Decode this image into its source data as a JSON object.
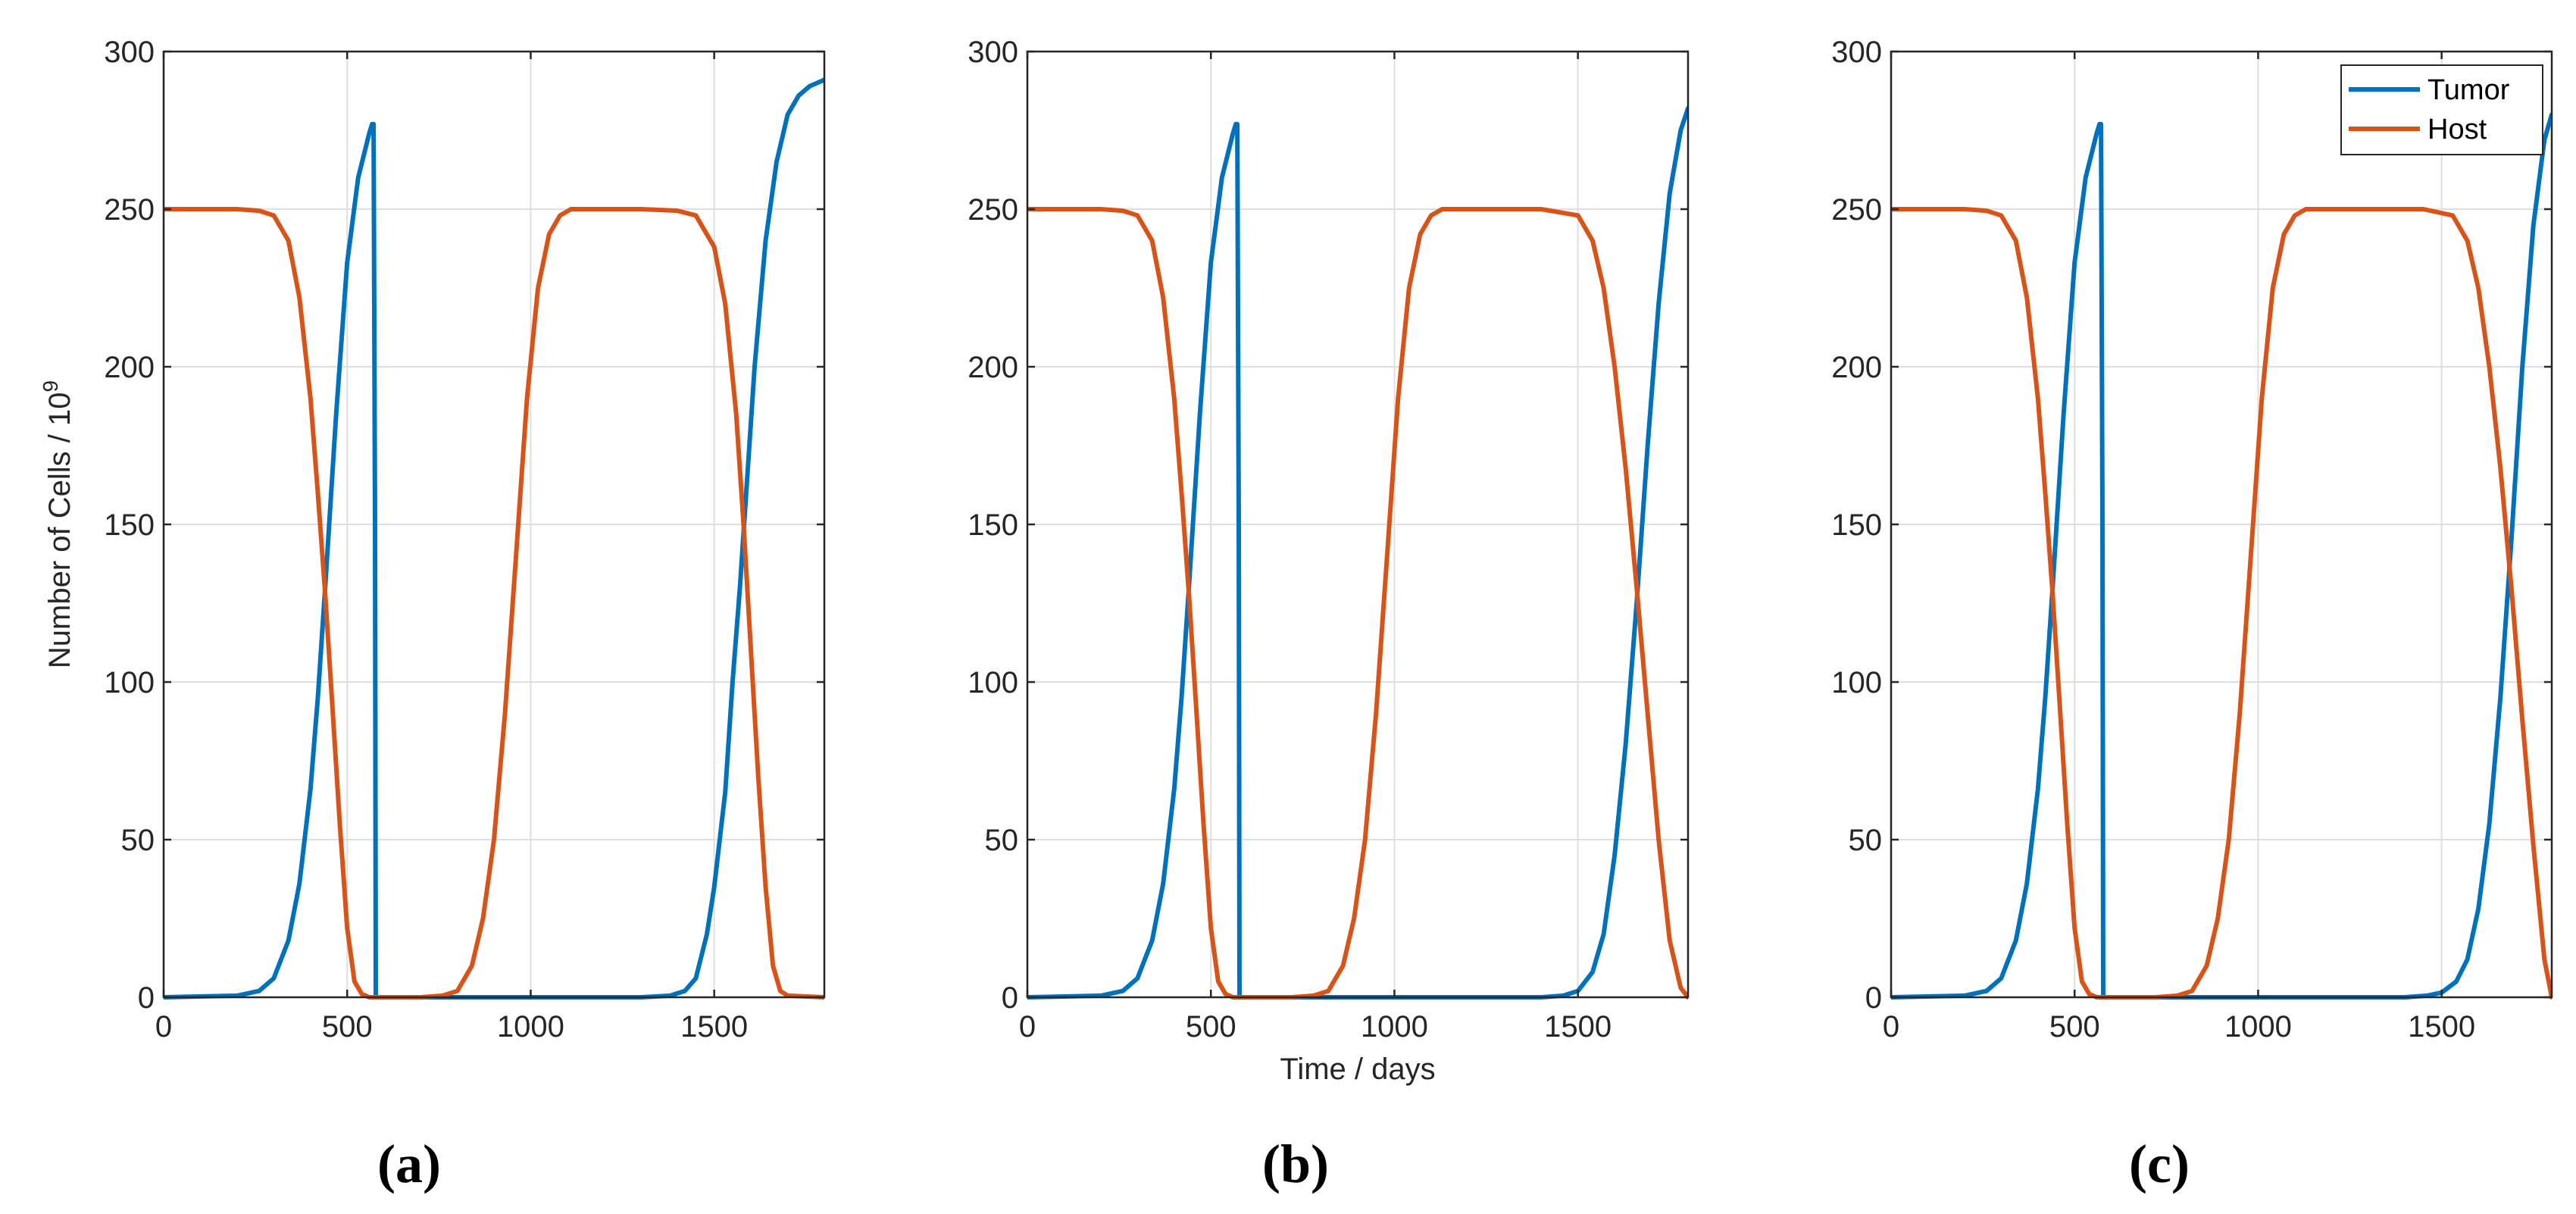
{
  "colors": {
    "tumor": "#0072BD",
    "host": "#D95319"
  },
  "chart_data": [
    {
      "type": "line",
      "panel": "(a)",
      "xlabel": "",
      "ylabel": "Number of Cells / 10",
      "ylabel_exponent": "9",
      "xlim": [
        0,
        1800
      ],
      "ylim": [
        0,
        300
      ],
      "xticks": [
        0,
        500,
        1000,
        1500
      ],
      "xtick_labels": [
        "0",
        "500",
        "1000",
        "1500"
      ],
      "yticks": [
        0,
        50,
        100,
        150,
        200,
        250,
        300
      ],
      "ytick_labels": [
        "0",
        "50",
        "100",
        "150",
        "200",
        "250",
        "300"
      ],
      "grid": true,
      "legend": null,
      "series": [
        {
          "name": "Tumor",
          "color": "#0072BD",
          "x": [
            0,
            200,
            260,
            300,
            340,
            370,
            400,
            420,
            440,
            470,
            500,
            530,
            560,
            568,
            572,
            576,
            578,
            590,
            700,
            1300,
            1380,
            1420,
            1450,
            1480,
            1500,
            1530,
            1550,
            1570,
            1590,
            1610,
            1640,
            1670,
            1700,
            1730,
            1760,
            1800
          ],
          "y": [
            0,
            0.5,
            2,
            6,
            18,
            36,
            66,
            95,
            130,
            185,
            233,
            260,
            274,
            277,
            277,
            150,
            0,
            0,
            0,
            0,
            0.5,
            2,
            6,
            20,
            35,
            65,
            100,
            130,
            165,
            200,
            240,
            265,
            280,
            286,
            289,
            291
          ]
        },
        {
          "name": "Host",
          "color": "#D95319",
          "x": [
            0,
            200,
            260,
            300,
            340,
            370,
            400,
            420,
            440,
            460,
            480,
            500,
            520,
            540,
            560,
            600,
            700,
            760,
            800,
            840,
            870,
            900,
            930,
            960,
            990,
            1020,
            1050,
            1080,
            1110,
            1150,
            1200,
            1300,
            1400,
            1450,
            1500,
            1530,
            1560,
            1580,
            1600,
            1620,
            1640,
            1660,
            1680,
            1700,
            1800
          ],
          "y": [
            250,
            250,
            249.5,
            248,
            240,
            222,
            190,
            160,
            128,
            92,
            55,
            22,
            5,
            1,
            0,
            0,
            0,
            0.5,
            2,
            10,
            25,
            50,
            90,
            140,
            190,
            225,
            242,
            248,
            250,
            250,
            250,
            250,
            249.5,
            248,
            238,
            220,
            185,
            150,
            110,
            70,
            35,
            10,
            2,
            0.5,
            0
          ]
        }
      ]
    },
    {
      "type": "line",
      "panel": "(b)",
      "xlabel": "Time / days",
      "ylabel": "",
      "xlim": [
        0,
        1800
      ],
      "ylim": [
        0,
        300
      ],
      "xticks": [
        0,
        500,
        1000,
        1500
      ],
      "xtick_labels": [
        "0",
        "500",
        "1000",
        "1500"
      ],
      "yticks": [
        0,
        50,
        100,
        150,
        200,
        250,
        300
      ],
      "ytick_labels": [
        "0",
        "50",
        "100",
        "150",
        "200",
        "250",
        "300"
      ],
      "grid": true,
      "legend": null,
      "series": [
        {
          "name": "Tumor",
          "color": "#0072BD",
          "x": [
            0,
            200,
            260,
            300,
            340,
            370,
            400,
            420,
            440,
            470,
            500,
            530,
            560,
            568,
            572,
            576,
            578,
            590,
            700,
            1400,
            1460,
            1500,
            1540,
            1570,
            1600,
            1630,
            1660,
            1690,
            1720,
            1750,
            1780,
            1800
          ],
          "y": [
            0,
            0.5,
            2,
            6,
            18,
            36,
            66,
            95,
            130,
            185,
            233,
            260,
            274,
            277,
            277,
            150,
            0,
            0,
            0,
            0,
            0.5,
            2,
            8,
            20,
            45,
            80,
            125,
            175,
            220,
            255,
            275,
            282
          ]
        },
        {
          "name": "Host",
          "color": "#D95319",
          "x": [
            0,
            200,
            260,
            300,
            340,
            370,
            400,
            420,
            440,
            460,
            480,
            500,
            520,
            540,
            560,
            600,
            720,
            780,
            820,
            860,
            890,
            920,
            950,
            980,
            1010,
            1040,
            1070,
            1100,
            1130,
            1170,
            1200,
            1400,
            1500,
            1540,
            1570,
            1600,
            1630,
            1660,
            1690,
            1720,
            1750,
            1780,
            1800
          ],
          "y": [
            250,
            250,
            249.5,
            248,
            240,
            222,
            190,
            160,
            128,
            92,
            55,
            22,
            5,
            1,
            0,
            0,
            0,
            0.5,
            2,
            10,
            25,
            50,
            90,
            140,
            190,
            225,
            242,
            248,
            250,
            250,
            250,
            250,
            248,
            240,
            225,
            200,
            168,
            130,
            90,
            50,
            18,
            3,
            0
          ]
        }
      ]
    },
    {
      "type": "line",
      "panel": "(c)",
      "xlabel": "",
      "ylabel": "",
      "xlim": [
        0,
        1800
      ],
      "ylim": [
        0,
        300
      ],
      "xticks": [
        0,
        500,
        1000,
        1500
      ],
      "xtick_labels": [
        "0",
        "500",
        "1000",
        "1500"
      ],
      "yticks": [
        0,
        50,
        100,
        150,
        200,
        250,
        300
      ],
      "ytick_labels": [
        "0",
        "50",
        "100",
        "150",
        "200",
        "250",
        "300"
      ],
      "grid": true,
      "legend": {
        "position": "top-right",
        "entries": [
          "Tumor",
          "Host"
        ]
      },
      "series": [
        {
          "name": "Tumor",
          "color": "#0072BD",
          "x": [
            0,
            200,
            260,
            300,
            340,
            370,
            400,
            420,
            440,
            470,
            500,
            530,
            560,
            568,
            572,
            576,
            578,
            590,
            700,
            1400,
            1460,
            1500,
            1540,
            1570,
            1600,
            1630,
            1660,
            1690,
            1720,
            1750,
            1780,
            1800
          ],
          "y": [
            0,
            0.5,
            2,
            6,
            18,
            36,
            66,
            95,
            130,
            185,
            233,
            260,
            274,
            277,
            277,
            150,
            0,
            0,
            0,
            0,
            0.5,
            1.5,
            5,
            12,
            28,
            55,
            95,
            145,
            200,
            245,
            272,
            280
          ]
        },
        {
          "name": "Host",
          "color": "#D95319",
          "x": [
            0,
            200,
            260,
            300,
            340,
            370,
            400,
            420,
            440,
            460,
            480,
            500,
            520,
            540,
            560,
            600,
            720,
            780,
            820,
            860,
            890,
            920,
            950,
            980,
            1010,
            1040,
            1070,
            1100,
            1130,
            1170,
            1200,
            1450,
            1530,
            1570,
            1600,
            1630,
            1660,
            1690,
            1720,
            1750,
            1780,
            1800
          ],
          "y": [
            250,
            250,
            249.5,
            248,
            240,
            222,
            190,
            160,
            128,
            92,
            55,
            22,
            5,
            1,
            0,
            0,
            0,
            0.5,
            2,
            10,
            25,
            50,
            90,
            140,
            190,
            225,
            242,
            248,
            250,
            250,
            250,
            250,
            248,
            240,
            225,
            200,
            168,
            130,
            88,
            48,
            12,
            0
          ]
        }
      ]
    }
  ]
}
